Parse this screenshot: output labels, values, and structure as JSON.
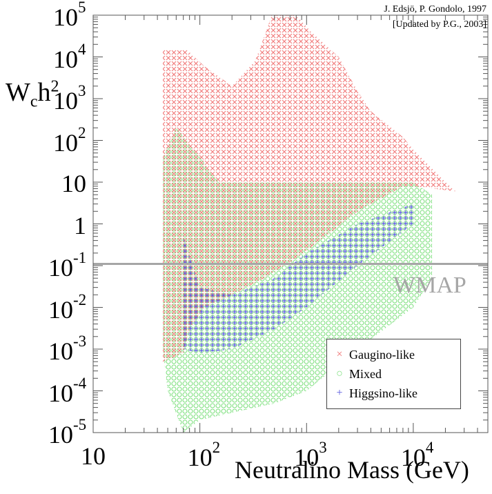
{
  "chart_data": {
    "type": "scatter",
    "title": "",
    "xlabel": "Neutralino Mass (GeV)",
    "ylabel_main": "W",
    "ylabel_sub": "c",
    "ylabel_tail": "h",
    "ylabel_sup": "2",
    "xscale": "log",
    "yscale": "log",
    "xlim": [
      10,
      50000
    ],
    "ylim": [
      1e-05,
      100000
    ],
    "x_ticks": [
      {
        "value": 10,
        "base": "10",
        "exp": ""
      },
      {
        "value": 100,
        "base": "10",
        "exp": "2"
      },
      {
        "value": 1000,
        "base": "10",
        "exp": "3"
      },
      {
        "value": 10000,
        "base": "10",
        "exp": "4"
      }
    ],
    "y_ticks": [
      {
        "value": 100000,
        "base": "10",
        "exp": "5"
      },
      {
        "value": 10000,
        "base": "10",
        "exp": "4"
      },
      {
        "value": 1000,
        "base": "10",
        "exp": "3"
      },
      {
        "value": 100,
        "base": "10",
        "exp": "2"
      },
      {
        "value": 10,
        "base": "10",
        "exp": ""
      },
      {
        "value": 1,
        "base": "1",
        "exp": ""
      },
      {
        "value": 0.1,
        "base": "10",
        "exp": "-1"
      },
      {
        "value": 0.01,
        "base": "10",
        "exp": "-2"
      },
      {
        "value": 0.001,
        "base": "10",
        "exp": "-3"
      },
      {
        "value": 0.0001,
        "base": "10",
        "exp": "-4"
      },
      {
        "value": 1e-05,
        "base": "10",
        "exp": "-5"
      }
    ],
    "reference_line": {
      "y": 0.11,
      "label": "WMAP",
      "color": "#a6a6a6"
    },
    "legend_position": "lower-right",
    "series": [
      {
        "name": "Gaugino-like",
        "marker": "×",
        "color": "#f07070",
        "region": {
          "min_mass": 45,
          "upper": [
            [
              45,
              15000
            ],
            [
              75,
              15000
            ],
            [
              110,
              6000
            ],
            [
              200,
              2000
            ],
            [
              330,
              8000
            ],
            [
              430,
              50000
            ],
            [
              470,
              100000
            ],
            [
              800,
              100000
            ],
            [
              1100,
              40000
            ],
            [
              2000,
              10000
            ],
            [
              3000,
              1500
            ],
            [
              4000,
              500
            ],
            [
              8000,
              120
            ],
            [
              10000,
              60
            ],
            [
              20000,
              10
            ],
            [
              25000,
              6
            ]
          ],
          "lower": [
            [
              45,
              0.0005
            ],
            [
              70,
              0.0008
            ],
            [
              80,
              0.003
            ],
            [
              110,
              0.01
            ],
            [
              200,
              0.02
            ],
            [
              400,
              0.05
            ],
            [
              800,
              0.15
            ],
            [
              1500,
              0.5
            ],
            [
              3000,
              2
            ],
            [
              8000,
              8
            ],
            [
              10000,
              8
            ]
          ]
        }
      },
      {
        "name": "Mixed",
        "marker": "○",
        "color": "#7fe07f",
        "region": {
          "min_mass": 45,
          "upper": [
            [
              45,
              40
            ],
            [
              60,
              200
            ],
            [
              75,
              100
            ],
            [
              100,
              40
            ],
            [
              150,
              10
            ],
            [
              300,
              10
            ],
            [
              1000,
              10
            ],
            [
              3000,
              10
            ],
            [
              10000,
              10
            ],
            [
              15000,
              5
            ]
          ],
          "lower": [
            [
              45,
              0.001
            ],
            [
              50,
              0.0001
            ],
            [
              70,
              1e-05
            ],
            [
              100,
              2e-05
            ],
            [
              200,
              3e-05
            ],
            [
              500,
              5e-05
            ],
            [
              1000,
              0.0001
            ],
            [
              3000,
              0.001
            ],
            [
              10000,
              0.01
            ],
            [
              15000,
              0.05
            ]
          ]
        }
      },
      {
        "name": "Higgsino-like",
        "marker": "+",
        "color": "#5555dd",
        "region": {
          "min_mass": 70,
          "upper": [
            [
              70,
              0.5
            ],
            [
              100,
              0.03
            ],
            [
              200,
              0.02
            ],
            [
              500,
              0.05
            ],
            [
              1000,
              0.2
            ],
            [
              3000,
              1
            ],
            [
              10000,
              3
            ]
          ],
          "lower": [
            [
              70,
              0.001
            ],
            [
              100,
              0.0008
            ],
            [
              200,
              0.001
            ],
            [
              500,
              0.003
            ],
            [
              1000,
              0.01
            ],
            [
              3000,
              0.1
            ],
            [
              10000,
              1
            ]
          ]
        }
      }
    ],
    "credits": [
      "J. Edsjö, P. Gondolo, 1997",
      "[Updated by P.G., 2003]"
    ]
  }
}
